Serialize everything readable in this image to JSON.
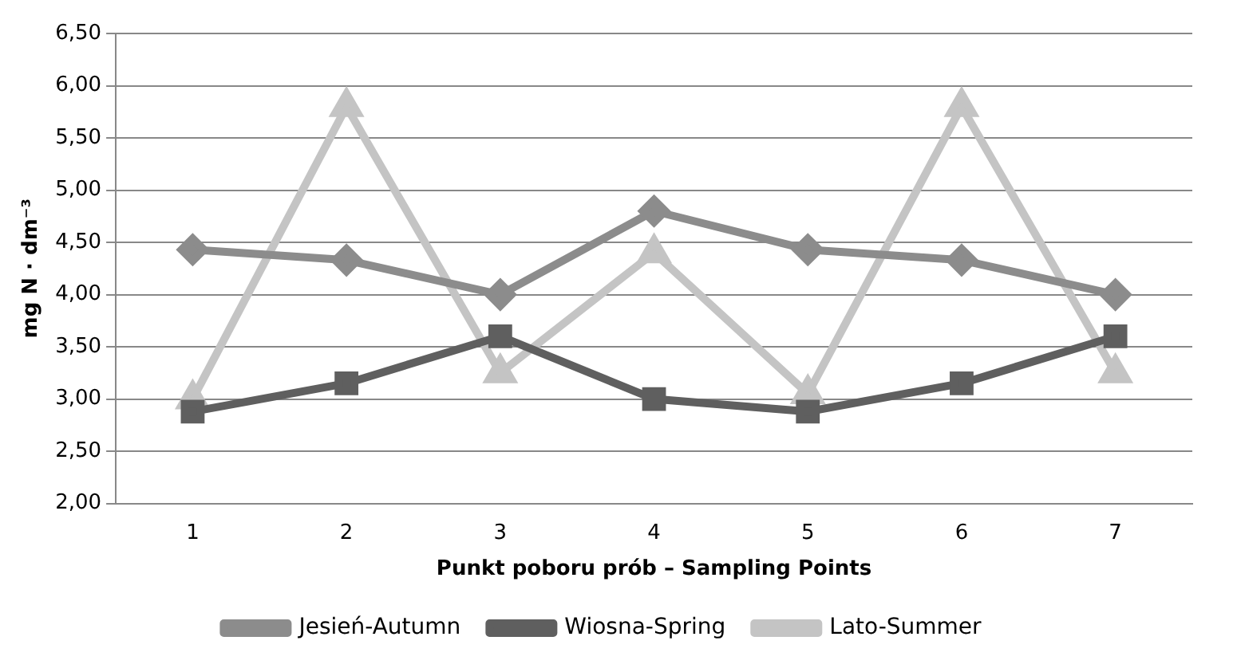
{
  "chart_data": {
    "type": "line",
    "xlabel": "Punkt poboru prób – Sampling Points",
    "ylabel": "mg N · dm⁻³",
    "categories": [
      "1",
      "2",
      "3",
      "4",
      "5",
      "6",
      "7"
    ],
    "series": [
      {
        "name": "Jesień-Autumn",
        "color": "#8c8c8c",
        "marker": "diamond",
        "values": [
          4.43,
          4.33,
          4.0,
          4.8,
          4.43,
          4.33,
          4.0
        ]
      },
      {
        "name": "Wiosna-Spring",
        "color": "#5f5f5f",
        "marker": "square",
        "values": [
          2.88,
          3.15,
          3.6,
          3.0,
          2.88,
          3.15,
          3.6
        ]
      },
      {
        "name": "Lato-Summer",
        "color": "#c4c4c4",
        "marker": "triangle",
        "values": [
          3.0,
          5.8,
          3.25,
          4.4,
          3.05,
          5.8,
          3.25
        ]
      }
    ],
    "ylim": [
      2.0,
      6.5
    ],
    "yticks": [
      {
        "value": 2.0,
        "label": "2,00"
      },
      {
        "value": 2.5,
        "label": "2,50"
      },
      {
        "value": 3.0,
        "label": "3,00"
      },
      {
        "value": 3.5,
        "label": "3,50"
      },
      {
        "value": 4.0,
        "label": "4,00"
      },
      {
        "value": 4.5,
        "label": "4,50"
      },
      {
        "value": 5.0,
        "label": "5,00"
      },
      {
        "value": 5.5,
        "label": "5,50"
      },
      {
        "value": 6.0,
        "label": "6,00"
      },
      {
        "value": 6.5,
        "label": "6,50"
      }
    ],
    "grid": "y",
    "legend": "bottom",
    "line_style": "solid"
  }
}
